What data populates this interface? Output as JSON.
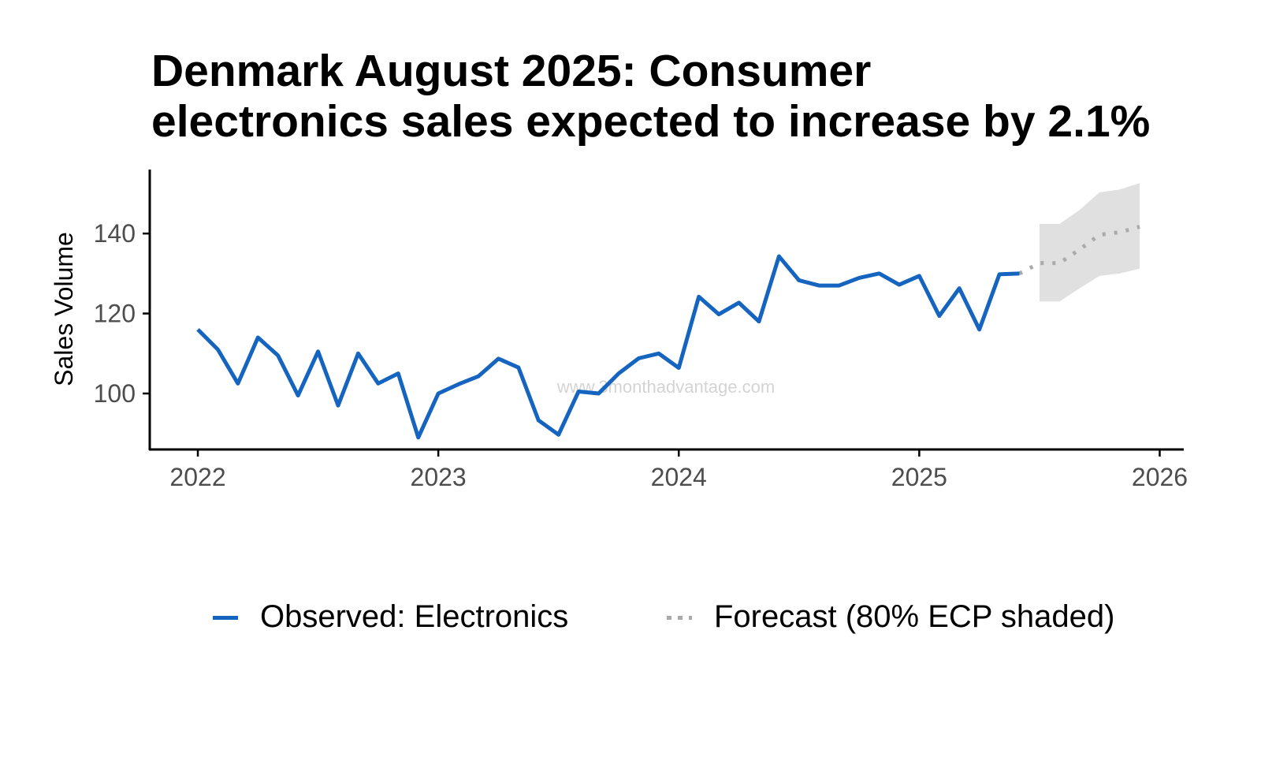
{
  "title_lines": [
    "Denmark August 2025: Consumer",
    "electronics sales expected to increase by 2.1%"
  ],
  "watermark": "www.3monthadvantage.com",
  "colors": {
    "observed": "#1565C0",
    "forecast": "#aaaaaa",
    "band": "#e0e0e0",
    "axis": "#000000",
    "tick_label": "#4d4d4d"
  },
  "chart_data": {
    "type": "line",
    "title": "Denmark August 2025: Consumer electronics sales expected to increase by 2.1%",
    "xlabel": "",
    "ylabel": "Sales Volume",
    "xlim": [
      2021.8,
      2026.1
    ],
    "ylim": [
      86,
      156
    ],
    "x_ticks": [
      2022,
      2023,
      2024,
      2025,
      2026
    ],
    "x_tick_labels": [
      "2022",
      "2023",
      "2024",
      "2025",
      "2026"
    ],
    "y_ticks": [
      100,
      120,
      140
    ],
    "y_tick_labels": [
      "100",
      "120",
      "140"
    ],
    "grid": false,
    "legend_position": "bottom",
    "series": [
      {
        "name": "Observed: Electronics",
        "style": "solid",
        "x": [
          "2022-01",
          "2022-02",
          "2022-03",
          "2022-04",
          "2022-05",
          "2022-06",
          "2022-07",
          "2022-08",
          "2022-09",
          "2022-10",
          "2022-11",
          "2022-12",
          "2023-01",
          "2023-02",
          "2023-03",
          "2023-04",
          "2023-05",
          "2023-06",
          "2023-07",
          "2023-08",
          "2023-09",
          "2023-10",
          "2023-11",
          "2023-12",
          "2024-01",
          "2024-02",
          "2024-03",
          "2024-04",
          "2024-05",
          "2024-06",
          "2024-07",
          "2024-08",
          "2024-09",
          "2024-10",
          "2024-11",
          "2024-12",
          "2025-01",
          "2025-02",
          "2025-03",
          "2025-04",
          "2025-05",
          "2025-06"
        ],
        "values": [
          116.0,
          111.0,
          102.5,
          114.0,
          109.5,
          99.5,
          110.5,
          97.0,
          110.0,
          102.5,
          105.0,
          89.0,
          100.0,
          102.3,
          104.3,
          108.7,
          106.5,
          93.3,
          89.7,
          100.5,
          100.0,
          105.0,
          108.8,
          110.0,
          106.4,
          124.2,
          119.8,
          122.7,
          118.0,
          134.3,
          128.3,
          127.0,
          127.0,
          128.9,
          130.0,
          127.2,
          129.4,
          119.4,
          126.3,
          116.0,
          129.8,
          130.0
        ]
      },
      {
        "name": "Forecast (80% ECP shaded)",
        "style": "dotted",
        "x": [
          "2025-06",
          "2025-07",
          "2025-08",
          "2025-09",
          "2025-10",
          "2025-11",
          "2025-12"
        ],
        "values": [
          130.0,
          132.6,
          132.6,
          136.0,
          139.7,
          140.3,
          141.7
        ],
        "lower": [
          null,
          123.0,
          123.0,
          126.3,
          129.4,
          130.0,
          131.2
        ],
        "upper": [
          null,
          142.4,
          142.4,
          145.9,
          150.3,
          151.0,
          152.6
        ]
      }
    ]
  }
}
